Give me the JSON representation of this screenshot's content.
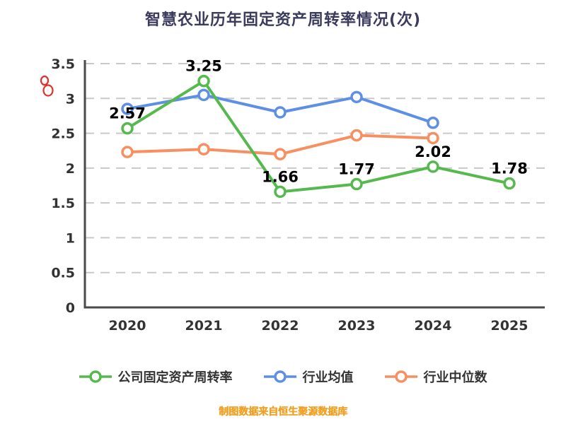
{
  "title": "智慧农业历年固定资产周转率情况(次)",
  "footer": "制图数据来自恒生聚源数据库",
  "colors": {
    "title": "#3b3b5e",
    "axis": "#4a4a4a",
    "grid": "#c9c9c9",
    "tick_label": "#333333",
    "data_label": "#000000",
    "footer": "#f0a228",
    "watermark_red": "#e0312e",
    "series_green": "#56b94e",
    "series_blue": "#5e8fe6",
    "series_orange": "#f78f61"
  },
  "chart_data": {
    "type": "line",
    "title": "智慧农业历年固定资产周转率情况(次)",
    "categories": [
      "2020",
      "2021",
      "2022",
      "2023",
      "2024",
      "2025"
    ],
    "xlabel": "",
    "ylabel": "",
    "ylim": [
      0,
      3.5
    ],
    "yticks": [
      0,
      0.5,
      1,
      1.5,
      2,
      2.5,
      3,
      3.5
    ],
    "ytick_labels": [
      "0",
      "0.5",
      "1",
      "1.5",
      "2",
      "2.5",
      "3",
      "3.5"
    ],
    "grid": "horizontal-dashed",
    "legend_position": "bottom",
    "series": [
      {
        "name": "公司固定资产周转率",
        "color": "#56b94e",
        "values": [
          2.57,
          3.25,
          1.66,
          1.77,
          2.02,
          1.78
        ],
        "labels": [
          "2.57",
          "3.25",
          "1.66",
          "1.77",
          "2.02",
          "1.78"
        ],
        "show_labels": true
      },
      {
        "name": "行业均值",
        "color": "#5e8fe6",
        "values": [
          2.85,
          3.05,
          2.8,
          3.02,
          2.65,
          null
        ],
        "labels": [],
        "show_labels": false
      },
      {
        "name": "行业中位数",
        "color": "#f78f61",
        "values": [
          2.23,
          2.27,
          2.2,
          2.47,
          2.43,
          null
        ],
        "labels": [],
        "show_labels": false
      }
    ]
  }
}
